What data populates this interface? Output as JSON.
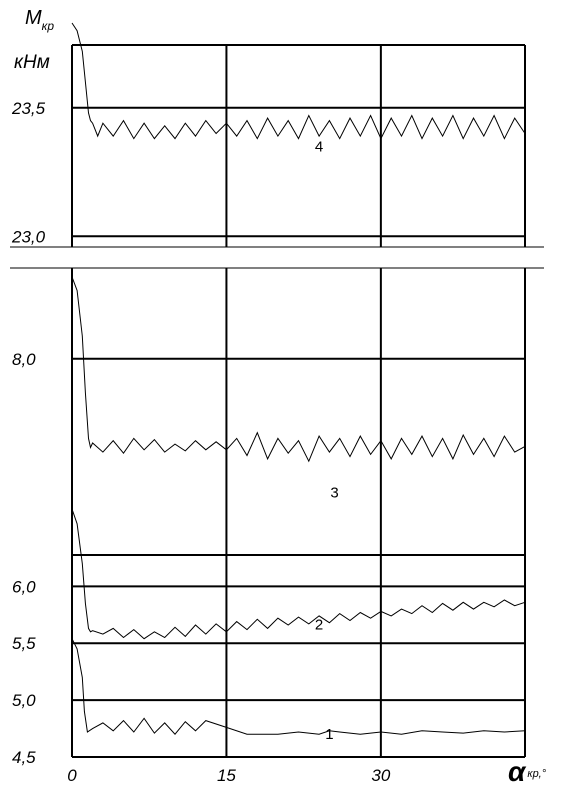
{
  "chart_data": [
    {
      "type": "line",
      "panel": "upper",
      "y_title": "M",
      "y_title_sub": "кр",
      "y_unit": "кНм",
      "xlim": [
        0,
        44
      ],
      "ylim": [
        22.9,
        23.9
      ],
      "y_ticks": [
        {
          "value": 23.0,
          "label": "23,0"
        },
        {
          "value": 23.5,
          "label": "23,5"
        }
      ],
      "grid": true,
      "series": [
        {
          "name": "4",
          "label_at": {
            "x": 24,
            "y": 23.33
          },
          "x": [
            0,
            0.5,
            1,
            1.3,
            1.6,
            1.8,
            2,
            2.5,
            3,
            4,
            5,
            6,
            7,
            8,
            9,
            10,
            11,
            12,
            13,
            14,
            15,
            16,
            17,
            18,
            19,
            20,
            21,
            22,
            23,
            24,
            25,
            26,
            27,
            28,
            29,
            30,
            31,
            32,
            33,
            34,
            35,
            36,
            37,
            38,
            39,
            40,
            41,
            42,
            43,
            44
          ],
          "y": [
            23.83,
            23.8,
            23.72,
            23.6,
            23.48,
            23.45,
            23.44,
            23.39,
            23.44,
            23.39,
            23.45,
            23.38,
            23.44,
            23.38,
            23.43,
            23.38,
            23.44,
            23.39,
            23.45,
            23.4,
            23.44,
            23.39,
            23.45,
            23.38,
            23.46,
            23.39,
            23.45,
            23.38,
            23.47,
            23.39,
            23.45,
            23.38,
            23.46,
            23.39,
            23.47,
            23.38,
            23.46,
            23.39,
            23.47,
            23.38,
            23.46,
            23.39,
            23.47,
            23.38,
            23.46,
            23.39,
            23.47,
            23.38,
            23.46,
            23.4
          ]
        }
      ]
    },
    {
      "type": "line",
      "panel": "lower",
      "x_title": "α",
      "x_title_sub": "кр,°",
      "xlim": [
        0,
        44
      ],
      "x_ticks": [
        {
          "value": 0,
          "label": "0"
        },
        {
          "value": 15,
          "label": "15"
        },
        {
          "value": 30,
          "label": "30"
        }
      ],
      "ylim": [
        4.5,
        9.0
      ],
      "y_ticks": [
        {
          "value": 4.5,
          "label": "4,5"
        },
        {
          "value": 5.0,
          "label": "5,0"
        },
        {
          "value": 5.5,
          "label": "5,5"
        },
        {
          "value": 6.0,
          "label": "6,0"
        },
        {
          "value": 8.0,
          "label": "8,0"
        }
      ],
      "grid": true,
      "series": [
        {
          "name": "3",
          "label_at": {
            "x": 25.5,
            "y": 6.78
          },
          "x": [
            0,
            0.5,
            1,
            1.3,
            1.6,
            1.8,
            2,
            3,
            4,
            5,
            6,
            7,
            8,
            9,
            10,
            11,
            12,
            13,
            14,
            15,
            16,
            17,
            18,
            19,
            20,
            21,
            22,
            23,
            24,
            25,
            26,
            27,
            28,
            29,
            30,
            31,
            32,
            33,
            34,
            35,
            36,
            37,
            38,
            39,
            40,
            41,
            42,
            43,
            44
          ],
          "y": [
            8.72,
            8.6,
            8.2,
            7.7,
            7.3,
            7.22,
            7.26,
            7.18,
            7.28,
            7.17,
            7.3,
            7.2,
            7.29,
            7.18,
            7.25,
            7.19,
            7.28,
            7.2,
            7.27,
            7.2,
            7.3,
            7.15,
            7.35,
            7.12,
            7.3,
            7.17,
            7.28,
            7.1,
            7.32,
            7.18,
            7.3,
            7.14,
            7.32,
            7.16,
            7.28,
            7.12,
            7.3,
            7.16,
            7.32,
            7.14,
            7.3,
            7.12,
            7.33,
            7.16,
            7.3,
            7.14,
            7.32,
            7.18,
            7.23
          ]
        },
        {
          "name": "2",
          "label_at": {
            "x": 24,
            "y": 5.62
          },
          "x": [
            0,
            0.5,
            1,
            1.3,
            1.6,
            1.8,
            2,
            3,
            4,
            5,
            6,
            7,
            8,
            9,
            10,
            11,
            12,
            13,
            14,
            15,
            16,
            17,
            18,
            19,
            20,
            21,
            22,
            23,
            24,
            25,
            26,
            27,
            28,
            29,
            30,
            31,
            32,
            33,
            34,
            35,
            36,
            37,
            38,
            39,
            40,
            41,
            42,
            43,
            44
          ],
          "y": [
            6.68,
            6.55,
            6.2,
            5.85,
            5.63,
            5.6,
            5.61,
            5.58,
            5.63,
            5.55,
            5.62,
            5.54,
            5.6,
            5.55,
            5.64,
            5.56,
            5.66,
            5.58,
            5.67,
            5.6,
            5.69,
            5.62,
            5.71,
            5.63,
            5.72,
            5.66,
            5.73,
            5.67,
            5.74,
            5.68,
            5.76,
            5.7,
            5.77,
            5.72,
            5.78,
            5.74,
            5.8,
            5.76,
            5.83,
            5.77,
            5.85,
            5.79,
            5.86,
            5.8,
            5.86,
            5.82,
            5.88,
            5.83,
            5.86
          ]
        },
        {
          "name": "1",
          "label_at": {
            "x": 25,
            "y": 4.66
          },
          "x": [
            0,
            0.5,
            1,
            1.2,
            1.5,
            2,
            3,
            4,
            5,
            6,
            7,
            8,
            9,
            10,
            11,
            12,
            13,
            15,
            17,
            20,
            22,
            24,
            25,
            26,
            28,
            30,
            32,
            34,
            36,
            38,
            40,
            42,
            44
          ],
          "y": [
            5.54,
            5.45,
            5.2,
            4.9,
            4.72,
            4.75,
            4.8,
            4.73,
            4.82,
            4.72,
            4.84,
            4.71,
            4.8,
            4.7,
            4.81,
            4.73,
            4.82,
            4.76,
            4.7,
            4.7,
            4.72,
            4.7,
            4.73,
            4.72,
            4.7,
            4.72,
            4.7,
            4.73,
            4.72,
            4.71,
            4.73,
            4.72,
            4.73
          ]
        }
      ]
    }
  ]
}
